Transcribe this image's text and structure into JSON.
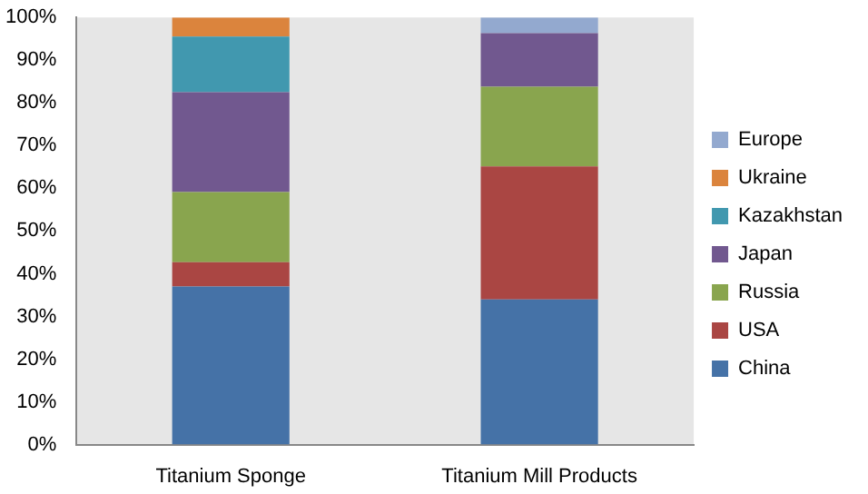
{
  "chart_data": {
    "type": "bar",
    "stacked": true,
    "categories": [
      "Titanium Sponge",
      "Titanium Mill Products"
    ],
    "ylim": [
      0,
      100
    ],
    "yticks": [
      {
        "value": 0,
        "label": "0%"
      },
      {
        "value": 10,
        "label": "10%"
      },
      {
        "value": 20,
        "label": "20%"
      },
      {
        "value": 30,
        "label": "30%"
      },
      {
        "value": 40,
        "label": "40%"
      },
      {
        "value": 50,
        "label": "50%"
      },
      {
        "value": 60,
        "label": "60%"
      },
      {
        "value": 70,
        "label": "70%"
      },
      {
        "value": 80,
        "label": "80%"
      },
      {
        "value": 90,
        "label": "90%"
      },
      {
        "value": 100,
        "label": "100%"
      }
    ],
    "grid": false,
    "legend": "right",
    "series": [
      {
        "name": "China",
        "color": "#4572a7",
        "values": [
          37,
          34
        ]
      },
      {
        "name": "USA",
        "color": "#aa4643",
        "values": [
          5.7,
          31.1
        ]
      },
      {
        "name": "Russia",
        "color": "#89a54e",
        "values": [
          16.4,
          18.7
        ]
      },
      {
        "name": "Japan",
        "color": "#71588f",
        "values": [
          23.4,
          12.5
        ]
      },
      {
        "name": "Kazakhstan",
        "color": "#4198af",
        "values": [
          13,
          null
        ]
      },
      {
        "name": "Ukraine",
        "color": "#db843d",
        "values": [
          4.5,
          null
        ]
      },
      {
        "name": "Europe",
        "color": "#93a9cf",
        "values": [
          null,
          3.7
        ]
      }
    ]
  }
}
